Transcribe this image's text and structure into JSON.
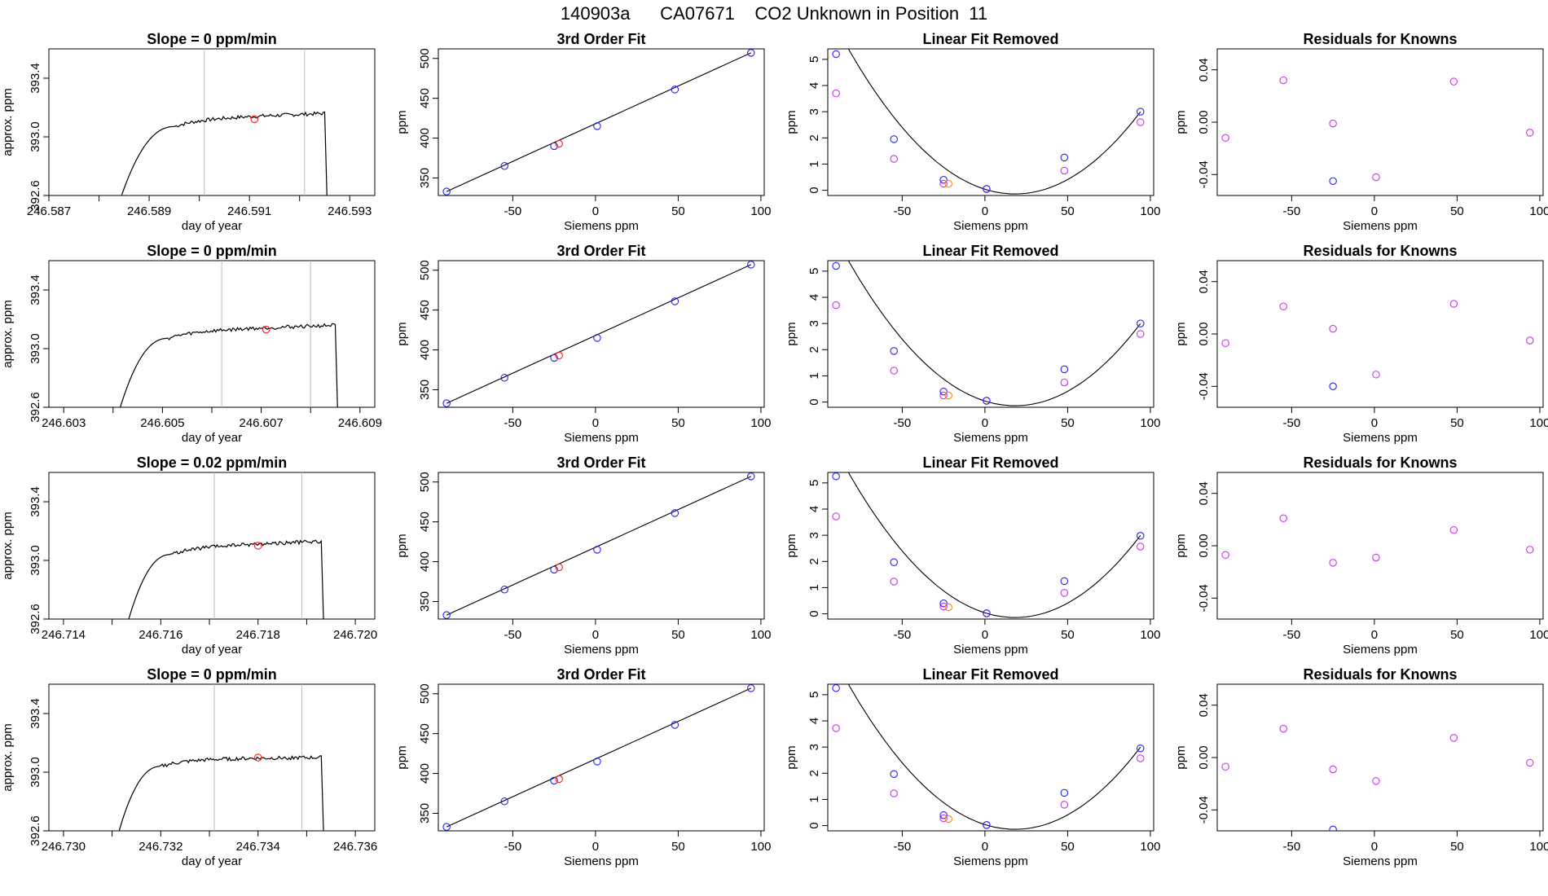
{
  "title": "140903a      CA07671    CO2 Unknown in Position  11",
  "colors": {
    "line": "#000000",
    "blue": "#2222ee",
    "magenta": "#cc33ee",
    "red": "#ee2222",
    "orange": "#ff8800",
    "grey": "#bbbbbb"
  },
  "chart_data": [
    {
      "type": "line",
      "title": "Slope =  0  ppm/min",
      "xlabel": "day of year",
      "ylabel": "approx. ppm",
      "xlim": [
        246.587,
        246.5935
      ],
      "ylim": [
        392.6,
        393.6
      ],
      "xticks": [
        "246.587",
        "246.589",
        "246.591",
        "246.593"
      ],
      "xminor": [
        246.588,
        246.59,
        246.592
      ],
      "yticks": [
        "392.6",
        "393.0",
        "393.4"
      ],
      "vlines": [
        246.5901,
        246.5921
      ],
      "marker": {
        "x": 246.5911,
        "y": 393.12
      },
      "series": [
        {
          "start": 246.5884,
          "end": 246.5925,
          "rise_end": 246.5895,
          "plateau": 393.12,
          "tail": 393.16
        }
      ]
    },
    {
      "type": "scatter",
      "title": "3rd Order Fit",
      "xlabel": "Siemens ppm",
      "ylabel": "ppm",
      "xlim": [
        -95,
        102
      ],
      "ylim": [
        328,
        512
      ],
      "xticks": [
        "-50",
        "0",
        "50",
        "100"
      ],
      "yticks": [
        "350",
        "400",
        "450",
        "500"
      ],
      "fit_line": [
        [
          -90,
          333
        ],
        [
          94,
          507
        ]
      ],
      "points_blue": [
        [
          -90,
          333
        ],
        [
          -55,
          365
        ],
        [
          -25,
          390
        ],
        [
          1,
          415
        ],
        [
          48,
          461
        ],
        [
          94,
          507
        ]
      ],
      "points_red": [
        [
          -22,
          393
        ]
      ]
    },
    {
      "type": "scatter",
      "title": "Linear Fit Removed",
      "xlabel": "Siemens ppm",
      "ylabel": "ppm",
      "xlim": [
        -95,
        102
      ],
      "ylim": [
        -0.2,
        5.4
      ],
      "xticks": [
        "-50",
        "0",
        "50",
        "100"
      ],
      "yticks": [
        "0",
        "1",
        "2",
        "3",
        "4",
        "5"
      ],
      "curve": {
        "a": 0.000546,
        "b": -0.0199,
        "c": 0.04
      },
      "points_blue": [
        [
          -90,
          5.2
        ],
        [
          -55,
          1.95
        ],
        [
          -25,
          0.4
        ],
        [
          1,
          0.05
        ],
        [
          48,
          1.25
        ],
        [
          94,
          3.0
        ]
      ],
      "points_magenta": [
        [
          -90,
          3.7
        ],
        [
          -55,
          1.2
        ],
        [
          -25,
          0.25
        ],
        [
          1,
          0.05
        ],
        [
          48,
          0.75
        ],
        [
          94,
          2.6
        ]
      ],
      "points_orange": [
        [
          -22,
          0.25
        ]
      ]
    },
    {
      "type": "scatter",
      "title": "Residuals for Knowns",
      "xlabel": "Siemens ppm",
      "ylabel": "ppm",
      "xlim": [
        -95,
        102
      ],
      "ylim": [
        -0.056,
        0.056
      ],
      "xticks": [
        "-50",
        "0",
        "50",
        "100"
      ],
      "yticks": [
        "-0.04",
        "0.00",
        "0.04"
      ],
      "points_magenta": [
        [
          -90,
          -0.012
        ],
        [
          -55,
          0.032
        ],
        [
          -25,
          -0.001
        ],
        [
          1,
          -0.042
        ],
        [
          48,
          0.031
        ],
        [
          94,
          -0.008
        ]
      ],
      "points_blue": [
        [
          -25,
          -0.045
        ]
      ]
    },
    {
      "type": "line",
      "title": "Slope =  0  ppm/min",
      "xlabel": "day of year",
      "ylabel": "approx. ppm",
      "xlim": [
        246.6027,
        246.6093
      ],
      "ylim": [
        392.6,
        393.6
      ],
      "xticks": [
        "246.603",
        "246.605",
        "246.607",
        "246.609"
      ],
      "xminor": [
        246.604,
        246.606,
        246.608
      ],
      "yticks": [
        "392.6",
        "393.0",
        "393.4"
      ],
      "vlines": [
        246.6062,
        246.608
      ],
      "marker": {
        "x": 246.6071,
        "y": 393.13
      },
      "series": [
        {
          "start": 246.6041,
          "end": 246.6085,
          "rise_end": 246.6051,
          "plateau": 393.12,
          "tail": 393.16
        }
      ]
    },
    {
      "type": "scatter",
      "title": "3rd Order Fit",
      "xlabel": "Siemens ppm",
      "ylabel": "ppm",
      "xlim": [
        -95,
        102
      ],
      "ylim": [
        328,
        512
      ],
      "xticks": [
        "-50",
        "0",
        "50",
        "100"
      ],
      "yticks": [
        "350",
        "400",
        "450",
        "500"
      ],
      "fit_line": [
        [
          -90,
          333
        ],
        [
          94,
          507
        ]
      ],
      "points_blue": [
        [
          -90,
          333
        ],
        [
          -55,
          365
        ],
        [
          -25,
          390
        ],
        [
          1,
          415
        ],
        [
          48,
          461
        ],
        [
          94,
          507
        ]
      ],
      "points_red": [
        [
          -22,
          393
        ]
      ]
    },
    {
      "type": "scatter",
      "title": "Linear Fit Removed",
      "xlabel": "Siemens ppm",
      "ylabel": "ppm",
      "xlim": [
        -95,
        102
      ],
      "ylim": [
        -0.2,
        5.4
      ],
      "xticks": [
        "-50",
        "0",
        "50",
        "100"
      ],
      "yticks": [
        "0",
        "1",
        "2",
        "3",
        "4",
        "5"
      ],
      "curve": {
        "a": 0.000546,
        "b": -0.0199,
        "c": 0.04
      },
      "points_blue": [
        [
          -90,
          5.2
        ],
        [
          -55,
          1.95
        ],
        [
          -25,
          0.4
        ],
        [
          1,
          0.05
        ],
        [
          48,
          1.25
        ],
        [
          94,
          3.0
        ]
      ],
      "points_magenta": [
        [
          -90,
          3.7
        ],
        [
          -55,
          1.2
        ],
        [
          -25,
          0.25
        ],
        [
          1,
          0.05
        ],
        [
          48,
          0.75
        ],
        [
          94,
          2.6
        ]
      ],
      "points_orange": [
        [
          -22,
          0.25
        ]
      ]
    },
    {
      "type": "scatter",
      "title": "Residuals for Knowns",
      "xlabel": "Siemens ppm",
      "ylabel": "ppm",
      "xlim": [
        -95,
        102
      ],
      "ylim": [
        -0.056,
        0.056
      ],
      "xticks": [
        "-50",
        "0",
        "50",
        "100"
      ],
      "yticks": [
        "-0.04",
        "0.00",
        "0.04"
      ],
      "points_magenta": [
        [
          -90,
          -0.007
        ],
        [
          -55,
          0.021
        ],
        [
          -25,
          0.004
        ],
        [
          1,
          -0.031
        ],
        [
          48,
          0.023
        ],
        [
          94,
          -0.005
        ]
      ],
      "points_blue": [
        [
          -25,
          -0.04
        ]
      ]
    },
    {
      "type": "line",
      "title": "Slope =  0.02  ppm/min",
      "xlabel": "day of year",
      "ylabel": "approx. ppm",
      "xlim": [
        246.7137,
        246.7204
      ],
      "ylim": [
        392.6,
        393.6
      ],
      "xticks": [
        "246.714",
        "246.716",
        "246.718",
        "246.720"
      ],
      "xminor": [
        246.715,
        246.717,
        246.719
      ],
      "yticks": [
        "392.6",
        "393.0",
        "393.4"
      ],
      "vlines": [
        246.7171,
        246.7189
      ],
      "marker": {
        "x": 246.718,
        "y": 393.1
      },
      "series": [
        {
          "start": 246.7153,
          "end": 246.7193,
          "rise_end": 246.7162,
          "plateau": 393.09,
          "tail": 393.13
        }
      ]
    },
    {
      "type": "scatter",
      "title": "3rd Order Fit",
      "xlabel": "Siemens ppm",
      "ylabel": "ppm",
      "xlim": [
        -95,
        102
      ],
      "ylim": [
        328,
        512
      ],
      "xticks": [
        "-50",
        "0",
        "50",
        "100"
      ],
      "yticks": [
        "350",
        "400",
        "450",
        "500"
      ],
      "fit_line": [
        [
          -90,
          333
        ],
        [
          94,
          507
        ]
      ],
      "points_blue": [
        [
          -90,
          333
        ],
        [
          -55,
          365
        ],
        [
          -25,
          390
        ],
        [
          1,
          415
        ],
        [
          48,
          461
        ],
        [
          94,
          507
        ]
      ],
      "points_red": [
        [
          -22,
          393
        ]
      ]
    },
    {
      "type": "scatter",
      "title": "Linear Fit Removed",
      "xlabel": "Siemens ppm",
      "ylabel": "ppm",
      "xlim": [
        -95,
        102
      ],
      "ylim": [
        -0.2,
        5.4
      ],
      "xticks": [
        "-50",
        "0",
        "50",
        "100"
      ],
      "yticks": [
        "0",
        "1",
        "2",
        "3",
        "4",
        "5"
      ],
      "curve": {
        "a": 0.000546,
        "b": -0.0199,
        "c": 0.04
      },
      "points_blue": [
        [
          -90,
          5.25
        ],
        [
          -55,
          1.97
        ],
        [
          -25,
          0.4
        ],
        [
          1,
          0.02
        ],
        [
          48,
          1.25
        ],
        [
          94,
          2.98
        ]
      ],
      "points_magenta": [
        [
          -90,
          3.72
        ],
        [
          -55,
          1.23
        ],
        [
          -25,
          0.28
        ],
        [
          1,
          0.02
        ],
        [
          48,
          0.8
        ],
        [
          94,
          2.57
        ]
      ],
      "points_orange": [
        [
          -22,
          0.25
        ]
      ]
    },
    {
      "type": "scatter",
      "title": "Residuals for Knowns",
      "xlabel": "Siemens ppm",
      "ylabel": "ppm",
      "xlim": [
        -95,
        102
      ],
      "ylim": [
        -0.056,
        0.056
      ],
      "xticks": [
        "-50",
        "0",
        "50",
        "100"
      ],
      "yticks": [
        "-0.04",
        "0.00",
        "0.04"
      ],
      "points_magenta": [
        [
          -90,
          -0.007
        ],
        [
          -55,
          0.021
        ],
        [
          -25,
          -0.013
        ],
        [
          1,
          -0.009
        ],
        [
          48,
          0.012
        ],
        [
          94,
          -0.003
        ]
      ],
      "points_blue": []
    },
    {
      "type": "line",
      "title": "Slope =  0  ppm/min",
      "xlabel": "day of year",
      "ylabel": "approx. ppm",
      "xlim": [
        246.7297,
        246.7364
      ],
      "ylim": [
        392.6,
        393.6
      ],
      "xticks": [
        "246.730",
        "246.732",
        "246.734",
        "246.736"
      ],
      "xminor": [
        246.731,
        246.733,
        246.735
      ],
      "yticks": [
        "392.6",
        "393.0",
        "393.4"
      ],
      "vlines": [
        246.7331,
        246.7349
      ],
      "marker": {
        "x": 246.734,
        "y": 393.1
      },
      "series": [
        {
          "start": 246.7311,
          "end": 246.7353,
          "rise_end": 246.732,
          "plateau": 393.09,
          "tail": 393.1
        }
      ]
    },
    {
      "type": "scatter",
      "title": "3rd Order Fit",
      "xlabel": "Siemens ppm",
      "ylabel": "ppm",
      "xlim": [
        -95,
        102
      ],
      "ylim": [
        328,
        512
      ],
      "xticks": [
        "-50",
        "0",
        "50",
        "100"
      ],
      "yticks": [
        "350",
        "400",
        "450",
        "500"
      ],
      "fit_line": [
        [
          -90,
          333
        ],
        [
          94,
          507
        ]
      ],
      "points_blue": [
        [
          -90,
          333
        ],
        [
          -55,
          365
        ],
        [
          -25,
          391
        ],
        [
          1,
          415
        ],
        [
          48,
          461
        ],
        [
          94,
          507
        ]
      ],
      "points_red": [
        [
          -22,
          393
        ]
      ]
    },
    {
      "type": "scatter",
      "title": "Linear Fit Removed",
      "xlabel": "Siemens ppm",
      "ylabel": "ppm",
      "xlim": [
        -95,
        102
      ],
      "ylim": [
        -0.2,
        5.4
      ],
      "xticks": [
        "-50",
        "0",
        "50",
        "100"
      ],
      "yticks": [
        "0",
        "1",
        "2",
        "3",
        "4",
        "5"
      ],
      "curve": {
        "a": 0.000546,
        "b": -0.0199,
        "c": 0.04
      },
      "points_blue": [
        [
          -90,
          5.25
        ],
        [
          -55,
          1.97
        ],
        [
          -25,
          0.4
        ],
        [
          1,
          0.02
        ],
        [
          48,
          1.25
        ],
        [
          94,
          2.95
        ]
      ],
      "points_magenta": [
        [
          -90,
          3.72
        ],
        [
          -55,
          1.23
        ],
        [
          -25,
          0.28
        ],
        [
          1,
          0.02
        ],
        [
          48,
          0.8
        ],
        [
          94,
          2.57
        ]
      ],
      "points_orange": [
        [
          -22,
          0.25
        ]
      ]
    },
    {
      "type": "scatter",
      "title": "Residuals for Knowns",
      "xlabel": "Siemens ppm",
      "ylabel": "ppm",
      "xlim": [
        -95,
        102
      ],
      "ylim": [
        -0.056,
        0.056
      ],
      "xticks": [
        "-50",
        "0",
        "50",
        "100"
      ],
      "yticks": [
        "-0.04",
        "0.00",
        "0.04"
      ],
      "points_magenta": [
        [
          -90,
          -0.007
        ],
        [
          -55,
          0.022
        ],
        [
          -25,
          -0.009
        ],
        [
          1,
          -0.018
        ],
        [
          48,
          0.015
        ],
        [
          94,
          -0.004
        ]
      ],
      "points_blue": [
        [
          -25,
          -0.055
        ]
      ]
    }
  ]
}
